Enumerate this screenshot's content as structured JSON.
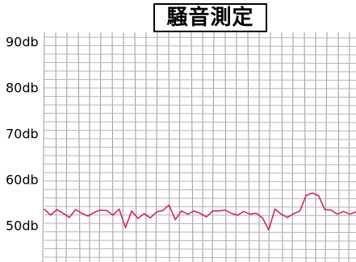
{
  "chart_data": {
    "type": "line",
    "title": "騒音測定",
    "xlabel": "",
    "ylabel": "",
    "y_unit": "db",
    "ylim": [
      42,
      92
    ],
    "ytick_labels": [
      {
        "value": 90,
        "label": "90db"
      },
      {
        "value": 80,
        "label": "80db"
      },
      {
        "value": 70,
        "label": "70db"
      },
      {
        "value": 60,
        "label": "60db"
      },
      {
        "value": 50,
        "label": "50db"
      }
    ],
    "grid": true,
    "xlim": [
      0,
      100
    ],
    "series": [
      {
        "color": "#d6245a",
        "x": [
          0,
          2,
          4,
          6,
          8,
          10,
          12,
          14,
          16,
          18,
          20,
          22,
          24,
          26,
          28,
          30,
          32,
          34,
          36,
          38,
          40,
          42,
          44,
          46,
          48,
          50,
          52,
          54,
          56,
          58,
          60,
          62,
          64,
          66,
          68,
          70,
          72,
          74,
          76,
          78,
          80,
          82,
          84,
          86,
          88,
          90,
          92,
          94,
          96,
          98,
          100
        ],
        "values": [
          53.5,
          52.2,
          53.4,
          52.6,
          51.7,
          53.4,
          52.6,
          52.0,
          52.8,
          53.3,
          53.2,
          52.2,
          53.5,
          49.5,
          53.1,
          51.5,
          52.5,
          51.6,
          52.9,
          53.2,
          54.4,
          51.2,
          53.1,
          52.4,
          53.1,
          52.6,
          51.8,
          53.1,
          53.1,
          53.3,
          52.6,
          52.2,
          53.0,
          52.4,
          52.6,
          51.6,
          49.0,
          53.5,
          52.4,
          51.7,
          52.5,
          53.1,
          56.5,
          57.0,
          56.4,
          53.4,
          53.3,
          52.4,
          53.0,
          52.4,
          52.9
        ]
      }
    ]
  }
}
